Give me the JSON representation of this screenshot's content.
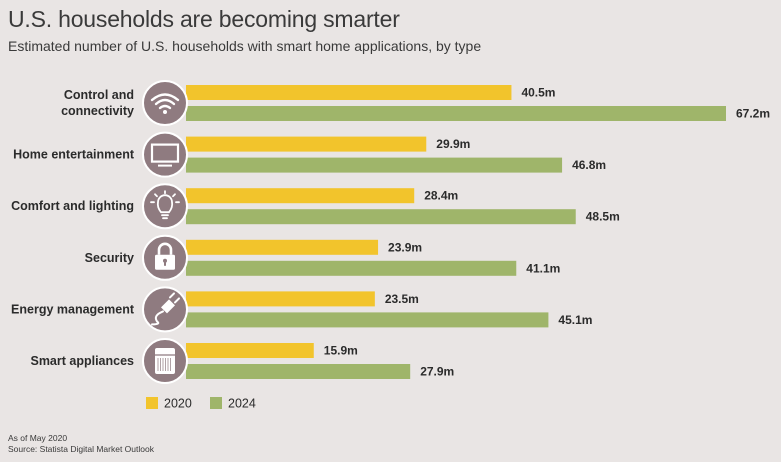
{
  "header": {
    "title": "U.S. households are becoming smarter",
    "subtitle": "Estimated number of U.S. households with smart home applications, by type"
  },
  "colors": {
    "series_2020": "#f2c42c",
    "series_2024": "#9fb56a",
    "icon_circle": "#8f7b80",
    "background": "#e9e5e4"
  },
  "chart_data": {
    "type": "bar",
    "orientation": "horizontal",
    "categories": [
      "Control and connectivity",
      "Home entertainment",
      "Comfort and lighting",
      "Security",
      "Energy management",
      "Smart appliances"
    ],
    "category_lines": [
      [
        "Control and",
        "connectivity"
      ],
      [
        "Home entertainment"
      ],
      [
        "Comfort and lighting"
      ],
      [
        "Security"
      ],
      [
        "Energy management"
      ],
      [
        "Smart appliances"
      ]
    ],
    "category_icons": [
      "wifi-icon",
      "tv-icon",
      "lightbulb-icon",
      "padlock-icon",
      "plug-icon",
      "washing-machine-icon"
    ],
    "series": [
      {
        "name": "2020",
        "values": [
          40.5,
          29.9,
          28.4,
          23.9,
          23.5,
          15.9
        ],
        "labels": [
          "40.5m",
          "29.9m",
          "28.4m",
          "23.9m",
          "23.5m",
          "15.9m"
        ]
      },
      {
        "name": "2024",
        "values": [
          67.2,
          46.8,
          48.5,
          41.1,
          45.1,
          27.9
        ],
        "labels": [
          "67.2m",
          "46.8m",
          "48.5m",
          "41.1m",
          "45.1m",
          "27.9m"
        ]
      }
    ],
    "xlim": [
      0,
      67.2
    ],
    "grid": false,
    "legend": "bottom-left"
  },
  "footer": {
    "note": "As of May 2020",
    "source": "Source: Statista Digital Market Outlook"
  }
}
